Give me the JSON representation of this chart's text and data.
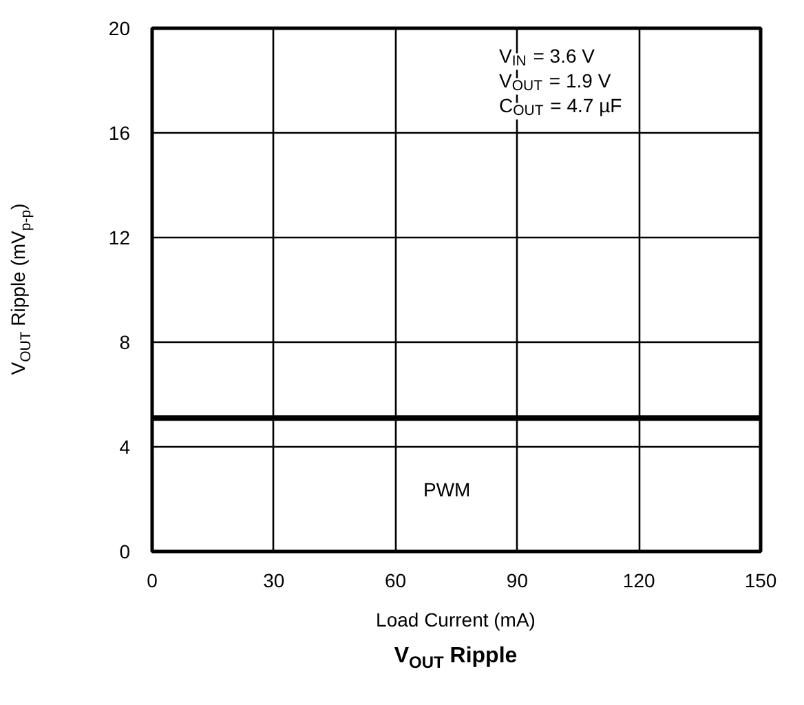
{
  "chart_data": {
    "type": "line",
    "title": "V$_{OUT}$ Ripple",
    "xlabel": "Load Current (mA)",
    "ylabel": "V$_{OUT}$ Ripple (mV$_{p-p}$)",
    "x": [
      0,
      150
    ],
    "series": [
      {
        "color": "#000000",
        "values": [
          5.1,
          5.1
        ]
      }
    ],
    "xlim": [
      0,
      150
    ],
    "xticks": [
      0,
      30,
      60,
      90,
      120,
      150
    ],
    "ylim": [
      0,
      20
    ],
    "yticks": [
      0,
      4,
      8,
      12,
      16,
      20
    ],
    "grid": true,
    "annotations": [
      "V$_{IN}$ = 3.6 V",
      "V$_{OUT}$ = 1.9 V",
      "C$_{OUT}$ = 4.7 µF",
      "PWM"
    ]
  }
}
